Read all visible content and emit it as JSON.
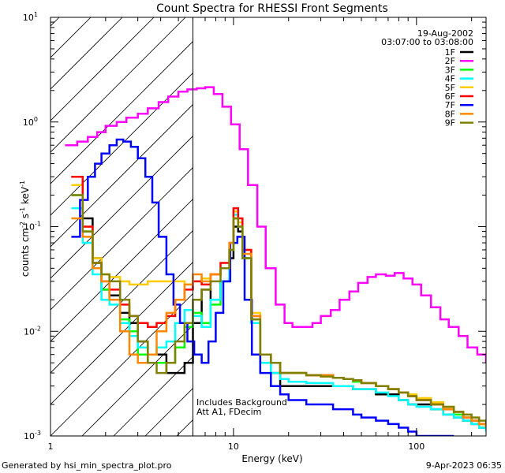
{
  "chart_data": {
    "type": "line",
    "title": "Count Spectra for RHESSI Front Segments",
    "xlabel": "Energy (keV)",
    "ylabel": {
      "base": "counts cm",
      "exp1": "-2",
      "mid": " s",
      "exp2": "-1",
      "tail": " keV",
      "exp3": "-1"
    },
    "xscale": "log",
    "yscale": "log",
    "xlim": [
      1,
      240
    ],
    "ylim": [
      0.001,
      10
    ],
    "x_tick_labels": [
      {
        "value": 1,
        "label": "1"
      },
      {
        "value": 10,
        "label": "10"
      },
      {
        "value": 100,
        "label": "100"
      }
    ],
    "y_tick_labels": [
      {
        "value": 10,
        "label": "10",
        "exp": "1"
      },
      {
        "value": 1,
        "label": "10",
        "exp": "0"
      },
      {
        "value": 0.1,
        "label": "10",
        "exp": "-1"
      },
      {
        "value": 0.01,
        "label": "10",
        "exp": "-2"
      },
      {
        "value": 0.001,
        "label": "10",
        "exp": "-3"
      }
    ],
    "date": "19-Aug-2002",
    "time_range": "03:07:00 to 03:08:00",
    "attenuator_energy_cutoff_kev": 6,
    "annotations": [
      "Includes Background",
      "Att A1, FDecim"
    ],
    "series": [
      {
        "name": "1F",
        "color": "#000000",
        "x": [
          1.3,
          1.5,
          1.7,
          1.9,
          2.1,
          2.4,
          2.7,
          3.0,
          3.4,
          3.8,
          4.3,
          4.8,
          5.4,
          6.0,
          6.7,
          7.5,
          8.5,
          9.5,
          10.0,
          10.6,
          11.2,
          12.5,
          14,
          16,
          18,
          20,
          25,
          30,
          35,
          40,
          45,
          50,
          60,
          70,
          80,
          90,
          100,
          120,
          140,
          160,
          180,
          200,
          220,
          240
        ],
        "y": [
          0.3,
          0.12,
          0.05,
          0.025,
          0.022,
          0.015,
          0.012,
          0.008,
          0.006,
          0.006,
          0.004,
          0.004,
          0.005,
          0.012,
          0.025,
          0.02,
          0.03,
          0.05,
          0.1,
          0.09,
          0.05,
          0.012,
          0.005,
          0.004,
          0.003,
          0.003,
          0.003,
          0.003,
          0.003,
          0.003,
          0.0028,
          0.0028,
          0.0025,
          0.0025,
          0.0022,
          0.002,
          0.002,
          0.0018,
          0.0016,
          0.0015,
          0.0014,
          0.0013,
          0.0012,
          0.0012
        ]
      },
      {
        "name": "2F",
        "color": "#ff00ff",
        "x": [
          1.2,
          1.4,
          1.6,
          1.8,
          2.0,
          2.3,
          2.6,
          3.0,
          3.4,
          3.9,
          4.4,
          5.0,
          5.6,
          6.3,
          7.0,
          7.8,
          8.7,
          9.7,
          10.8,
          12,
          13.5,
          15,
          17,
          19,
          21,
          24,
          27,
          30,
          34,
          38,
          43,
          48,
          54,
          60,
          68,
          76,
          85,
          95,
          106,
          120,
          135,
          150,
          170,
          190,
          215,
          240
        ],
        "y": [
          0.6,
          0.65,
          0.72,
          0.8,
          0.92,
          1.0,
          1.1,
          1.2,
          1.35,
          1.55,
          1.75,
          1.95,
          2.05,
          2.1,
          2.15,
          1.85,
          1.4,
          0.95,
          0.55,
          0.25,
          0.1,
          0.04,
          0.018,
          0.012,
          0.011,
          0.011,
          0.012,
          0.014,
          0.016,
          0.02,
          0.024,
          0.029,
          0.033,
          0.035,
          0.034,
          0.036,
          0.032,
          0.028,
          0.022,
          0.017,
          0.013,
          0.011,
          0.009,
          0.007,
          0.006,
          0.005
        ]
      },
      {
        "name": "3F",
        "color": "#00ff00",
        "x": [
          1.3,
          1.5,
          1.7,
          1.9,
          2.1,
          2.4,
          2.7,
          3.0,
          3.4,
          3.8,
          4.3,
          4.8,
          5.4,
          6.0,
          6.7,
          7.5,
          8.5,
          9.5,
          10.0,
          10.6,
          11.2,
          12.5,
          14,
          16,
          18,
          20,
          25,
          30,
          35,
          40,
          45,
          50,
          60,
          70,
          80,
          90,
          100,
          120,
          140,
          160,
          180,
          200,
          220,
          240
        ],
        "y": [
          0.2,
          0.09,
          0.045,
          0.025,
          0.02,
          0.013,
          0.01,
          0.006,
          0.005,
          0.005,
          0.005,
          0.007,
          0.011,
          0.015,
          0.012,
          0.018,
          0.03,
          0.06,
          0.12,
          0.1,
          0.05,
          0.013,
          0.006,
          0.005,
          0.004,
          0.004,
          0.0038,
          0.0038,
          0.0036,
          0.0035,
          0.0033,
          0.0032,
          0.003,
          0.0028,
          0.0026,
          0.0024,
          0.0022,
          0.002,
          0.0018,
          0.0016,
          0.0015,
          0.0014,
          0.0013,
          0.0012
        ]
      },
      {
        "name": "4F",
        "color": "#00ffff",
        "x": [
          1.3,
          1.5,
          1.7,
          1.9,
          2.1,
          2.4,
          2.7,
          3.0,
          3.4,
          3.8,
          4.3,
          4.8,
          5.4,
          6.0,
          6.7,
          7.5,
          8.5,
          9.5,
          10.0,
          10.6,
          11.2,
          12.5,
          14,
          16,
          18,
          20,
          25,
          30,
          35,
          40,
          45,
          50,
          60,
          70,
          80,
          90,
          100,
          120,
          140,
          160,
          180,
          200,
          220,
          240
        ],
        "y": [
          0.15,
          0.07,
          0.035,
          0.02,
          0.018,
          0.012,
          0.009,
          0.007,
          0.006,
          0.007,
          0.008,
          0.012,
          0.016,
          0.014,
          0.011,
          0.02,
          0.03,
          0.06,
          0.13,
          0.1,
          0.05,
          0.012,
          0.005,
          0.004,
          0.0035,
          0.0033,
          0.0032,
          0.0032,
          0.003,
          0.003,
          0.0028,
          0.0028,
          0.0026,
          0.0024,
          0.0022,
          0.002,
          0.0019,
          0.0018,
          0.0016,
          0.0015,
          0.0014,
          0.0013,
          0.0012,
          0.0011
        ]
      },
      {
        "name": "5F",
        "color": "#ffcc00",
        "x": [
          1.3,
          1.5,
          1.7,
          1.9,
          2.1,
          2.4,
          2.7,
          3.0,
          3.4,
          3.8,
          4.3,
          4.8,
          5.4,
          6.0,
          6.7,
          7.5,
          8.5,
          9.5,
          10.0,
          10.6,
          11.2,
          12.5,
          14,
          16,
          18,
          20,
          25,
          30,
          35,
          40,
          45,
          50,
          60,
          70,
          80,
          90,
          100,
          120,
          140,
          160,
          180,
          200,
          220,
          240
        ],
        "y": [
          0.25,
          0.1,
          0.05,
          0.035,
          0.033,
          0.03,
          0.028,
          0.028,
          0.03,
          0.03,
          0.03,
          0.03,
          0.028,
          0.03,
          0.032,
          0.035,
          0.04,
          0.06,
          0.14,
          0.11,
          0.06,
          0.015,
          0.006,
          0.005,
          0.004,
          0.004,
          0.0038,
          0.0037,
          0.0036,
          0.0035,
          0.0034,
          0.0032,
          0.003,
          0.0028,
          0.0026,
          0.0025,
          0.0023,
          0.0021,
          0.0019,
          0.0017,
          0.0016,
          0.0015,
          0.0013,
          0.0012
        ]
      },
      {
        "name": "6F",
        "color": "#ff0000",
        "x": [
          1.3,
          1.5,
          1.7,
          1.9,
          2.1,
          2.4,
          2.7,
          3.0,
          3.4,
          3.8,
          4.3,
          4.8,
          5.4,
          6.0,
          6.7,
          7.5,
          8.5,
          9.5,
          10.0,
          10.6,
          11.2,
          12.5,
          14,
          16,
          18,
          20,
          25,
          30,
          35,
          40,
          45,
          50,
          60,
          70,
          80,
          90,
          100,
          120,
          140,
          160,
          180,
          200,
          220,
          240
        ],
        "y": [
          0.3,
          0.1,
          0.045,
          0.03,
          0.025,
          0.018,
          0.014,
          0.012,
          0.011,
          0.012,
          0.014,
          0.02,
          0.025,
          0.03,
          0.028,
          0.035,
          0.045,
          0.07,
          0.15,
          0.12,
          0.06,
          0.014,
          0.006,
          0.005,
          0.004,
          0.004,
          0.0038,
          0.0038,
          0.0036,
          0.0035,
          0.0034,
          0.0032,
          0.003,
          0.0028,
          0.0026,
          0.0024,
          0.0022,
          0.002,
          0.0018,
          0.0017,
          0.0015,
          0.0014,
          0.0013,
          0.0012
        ]
      },
      {
        "name": "7F",
        "color": "#0000ff",
        "x": [
          1.3,
          1.45,
          1.6,
          1.75,
          1.9,
          2.1,
          2.3,
          2.5,
          2.75,
          3.0,
          3.3,
          3.6,
          3.9,
          4.3,
          4.7,
          5.1,
          5.6,
          6.1,
          6.7,
          7.3,
          8.0,
          8.8,
          9.6,
          10.5,
          11.5,
          12.6,
          14,
          16,
          18,
          20,
          25,
          30,
          35,
          40,
          45,
          50,
          60,
          70,
          80,
          90,
          100,
          120,
          140,
          160
        ],
        "y": [
          0.08,
          0.18,
          0.3,
          0.4,
          0.5,
          0.6,
          0.68,
          0.65,
          0.58,
          0.45,
          0.3,
          0.17,
          0.08,
          0.035,
          0.018,
          0.012,
          0.008,
          0.006,
          0.005,
          0.008,
          0.015,
          0.03,
          0.07,
          0.08,
          0.02,
          0.006,
          0.004,
          0.003,
          0.0025,
          0.0022,
          0.002,
          0.002,
          0.0018,
          0.0018,
          0.0016,
          0.0015,
          0.0014,
          0.0013,
          0.0012,
          0.0011,
          0.001,
          0.001,
          0.001,
          0.001
        ]
      },
      {
        "name": "8F",
        "color": "#ff8800",
        "x": [
          1.3,
          1.5,
          1.7,
          1.9,
          2.1,
          2.4,
          2.7,
          3.0,
          3.4,
          3.8,
          4.3,
          4.8,
          5.4,
          6.0,
          6.7,
          7.5,
          8.5,
          9.5,
          10.0,
          10.6,
          11.2,
          12.5,
          14,
          16,
          18,
          20,
          25,
          30,
          35,
          40,
          45,
          50,
          60,
          70,
          80,
          90,
          100,
          120,
          140,
          160,
          180,
          200,
          220,
          240
        ],
        "y": [
          0.12,
          0.08,
          0.04,
          0.03,
          0.02,
          0.01,
          0.006,
          0.005,
          0.006,
          0.01,
          0.015,
          0.02,
          0.028,
          0.035,
          0.03,
          0.035,
          0.04,
          0.07,
          0.12,
          0.1,
          0.055,
          0.014,
          0.006,
          0.005,
          0.004,
          0.004,
          0.0038,
          0.0038,
          0.0036,
          0.0035,
          0.0034,
          0.0032,
          0.003,
          0.0028,
          0.0026,
          0.0024,
          0.0022,
          0.002,
          0.0018,
          0.0017,
          0.0015,
          0.0014,
          0.0013,
          0.0012
        ]
      },
      {
        "name": "9F",
        "color": "#808000",
        "x": [
          1.3,
          1.5,
          1.7,
          1.9,
          2.1,
          2.4,
          2.7,
          3.0,
          3.4,
          3.8,
          4.3,
          4.8,
          5.4,
          6.0,
          6.7,
          7.5,
          8.5,
          9.5,
          10.0,
          10.6,
          11.2,
          12.5,
          14,
          16,
          18,
          20,
          25,
          30,
          35,
          40,
          45,
          50,
          60,
          70,
          80,
          90,
          100,
          120,
          140,
          160,
          180,
          200,
          220,
          240
        ],
        "y": [
          0.2,
          0.09,
          0.045,
          0.035,
          0.03,
          0.02,
          0.014,
          0.008,
          0.005,
          0.004,
          0.005,
          0.008,
          0.012,
          0.02,
          0.025,
          0.03,
          0.04,
          0.06,
          0.12,
          0.1,
          0.05,
          0.013,
          0.006,
          0.005,
          0.004,
          0.004,
          0.0038,
          0.0037,
          0.0036,
          0.0035,
          0.0034,
          0.0032,
          0.003,
          0.0028,
          0.0026,
          0.0024,
          0.0022,
          0.002,
          0.0019,
          0.0017,
          0.0016,
          0.0015,
          0.0014,
          0.0013
        ]
      }
    ]
  },
  "footer": {
    "generated_by": "Generated by hsi_min_spectra_plot.pro",
    "timestamp": "9-Apr-2023 06:35"
  }
}
